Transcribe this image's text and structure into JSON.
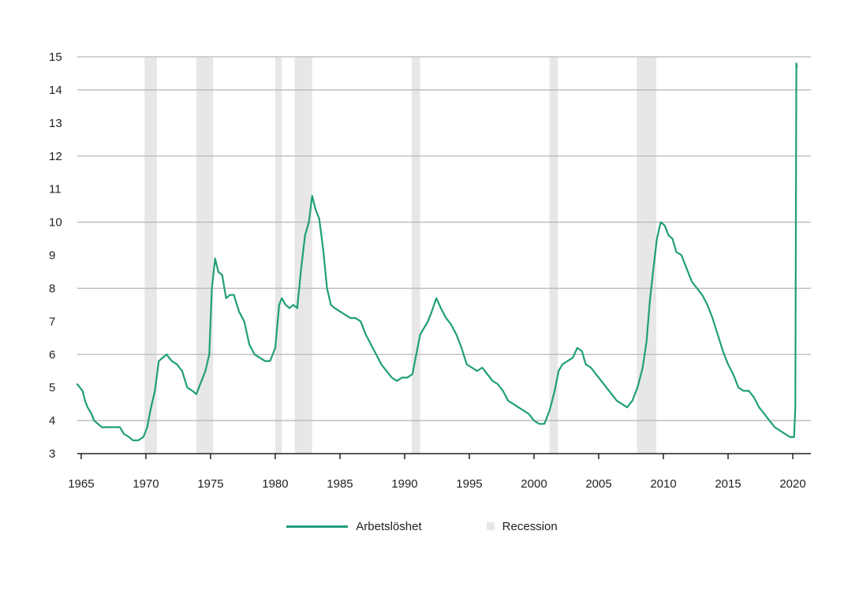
{
  "chart_data": {
    "type": "line",
    "title": "",
    "xlabel": "",
    "ylabel": "",
    "xlim": [
      1964.7,
      2021.4
    ],
    "ylim": [
      3,
      15
    ],
    "grid": true,
    "y_ticks": [
      3,
      4,
      5,
      6,
      7,
      8,
      9,
      10,
      11,
      12,
      13,
      14,
      15
    ],
    "y_tick_labels": [
      "3",
      "4",
      "5",
      "6",
      "7",
      "8",
      "9",
      "10",
      "11",
      "12",
      "13",
      "14",
      "15"
    ],
    "x_ticks": [
      1965,
      1970,
      1975,
      1980,
      1985,
      1990,
      1995,
      2000,
      2005,
      2010,
      2015,
      2020
    ],
    "x_tick_labels": [
      "1965",
      "1970",
      "1975",
      "1980",
      "1985",
      "1990",
      "1995",
      "2000",
      "2005",
      "2010",
      "2015",
      "2020"
    ],
    "legend_position": "bottom-center",
    "legend": [
      {
        "label": "Arbetslöshet",
        "kind": "line",
        "color": "#1f9e7a"
      },
      {
        "label": "Recession",
        "kind": "box",
        "color": "#e7e7e7"
      }
    ],
    "recessions": [
      [
        1969.9,
        1970.85
      ],
      [
        1973.9,
        1975.2
      ],
      [
        1980.0,
        1980.5
      ],
      [
        1981.5,
        1982.85
      ],
      [
        1990.55,
        1991.2
      ],
      [
        2001.2,
        2001.85
      ],
      [
        2007.95,
        2009.45
      ]
    ],
    "series": [
      {
        "name": "Arbetslöshet",
        "color": "#1f9e7a",
        "points": [
          [
            1964.7,
            5.1
          ],
          [
            1964.9,
            5.0
          ],
          [
            1965.1,
            4.9
          ],
          [
            1965.3,
            4.6
          ],
          [
            1965.5,
            4.4
          ],
          [
            1965.8,
            4.2
          ],
          [
            1966.0,
            4.0
          ],
          [
            1966.3,
            3.9
          ],
          [
            1966.6,
            3.8
          ],
          [
            1966.9,
            3.8
          ],
          [
            1967.2,
            3.8
          ],
          [
            1967.6,
            3.8
          ],
          [
            1968.0,
            3.8
          ],
          [
            1968.3,
            3.6
          ],
          [
            1968.7,
            3.5
          ],
          [
            1969.0,
            3.4
          ],
          [
            1969.4,
            3.4
          ],
          [
            1969.8,
            3.5
          ],
          [
            1970.1,
            3.8
          ],
          [
            1970.4,
            4.4
          ],
          [
            1970.7,
            4.9
          ],
          [
            1971.0,
            5.8
          ],
          [
            1971.3,
            5.9
          ],
          [
            1971.6,
            6.0
          ],
          [
            1972.0,
            5.8
          ],
          [
            1972.4,
            5.7
          ],
          [
            1972.8,
            5.5
          ],
          [
            1973.2,
            5.0
          ],
          [
            1973.6,
            4.9
          ],
          [
            1973.9,
            4.8
          ],
          [
            1974.2,
            5.1
          ],
          [
            1974.6,
            5.5
          ],
          [
            1974.9,
            6.0
          ],
          [
            1975.1,
            8.0
          ],
          [
            1975.35,
            8.9
          ],
          [
            1975.6,
            8.5
          ],
          [
            1975.9,
            8.4
          ],
          [
            1976.2,
            7.7
          ],
          [
            1976.5,
            7.8
          ],
          [
            1976.8,
            7.8
          ],
          [
            1977.2,
            7.3
          ],
          [
            1977.6,
            7.0
          ],
          [
            1978.0,
            6.3
          ],
          [
            1978.4,
            6.0
          ],
          [
            1978.8,
            5.9
          ],
          [
            1979.2,
            5.8
          ],
          [
            1979.6,
            5.8
          ],
          [
            1980.0,
            6.2
          ],
          [
            1980.3,
            7.5
          ],
          [
            1980.5,
            7.7
          ],
          [
            1980.8,
            7.5
          ],
          [
            1981.1,
            7.4
          ],
          [
            1981.4,
            7.5
          ],
          [
            1981.7,
            7.4
          ],
          [
            1982.0,
            8.6
          ],
          [
            1982.3,
            9.6
          ],
          [
            1982.6,
            10.0
          ],
          [
            1982.85,
            10.8
          ],
          [
            1983.1,
            10.4
          ],
          [
            1983.4,
            10.1
          ],
          [
            1983.7,
            9.2
          ],
          [
            1984.0,
            8.0
          ],
          [
            1984.3,
            7.5
          ],
          [
            1984.6,
            7.4
          ],
          [
            1985.0,
            7.3
          ],
          [
            1985.4,
            7.2
          ],
          [
            1985.8,
            7.1
          ],
          [
            1986.2,
            7.1
          ],
          [
            1986.6,
            7.0
          ],
          [
            1987.0,
            6.6
          ],
          [
            1987.4,
            6.3
          ],
          [
            1987.8,
            6.0
          ],
          [
            1988.2,
            5.7
          ],
          [
            1988.6,
            5.5
          ],
          [
            1989.0,
            5.3
          ],
          [
            1989.4,
            5.2
          ],
          [
            1989.8,
            5.3
          ],
          [
            1990.2,
            5.3
          ],
          [
            1990.6,
            5.4
          ],
          [
            1990.9,
            6.0
          ],
          [
            1991.2,
            6.6
          ],
          [
            1991.5,
            6.8
          ],
          [
            1991.8,
            7.0
          ],
          [
            1992.1,
            7.3
          ],
          [
            1992.45,
            7.7
          ],
          [
            1992.8,
            7.4
          ],
          [
            1993.2,
            7.1
          ],
          [
            1993.6,
            6.9
          ],
          [
            1994.0,
            6.6
          ],
          [
            1994.4,
            6.2
          ],
          [
            1994.8,
            5.7
          ],
          [
            1995.2,
            5.6
          ],
          [
            1995.6,
            5.5
          ],
          [
            1996.0,
            5.6
          ],
          [
            1996.4,
            5.4
          ],
          [
            1996.8,
            5.2
          ],
          [
            1997.2,
            5.1
          ],
          [
            1997.6,
            4.9
          ],
          [
            1998.0,
            4.6
          ],
          [
            1998.4,
            4.5
          ],
          [
            1998.8,
            4.4
          ],
          [
            1999.2,
            4.3
          ],
          [
            1999.6,
            4.2
          ],
          [
            2000.0,
            4.0
          ],
          [
            2000.4,
            3.9
          ],
          [
            2000.8,
            3.9
          ],
          [
            2001.2,
            4.3
          ],
          [
            2001.6,
            4.9
          ],
          [
            2001.9,
            5.5
          ],
          [
            2002.2,
            5.7
          ],
          [
            2002.6,
            5.8
          ],
          [
            2003.0,
            5.9
          ],
          [
            2003.35,
            6.2
          ],
          [
            2003.7,
            6.1
          ],
          [
            2004.0,
            5.7
          ],
          [
            2004.4,
            5.6
          ],
          [
            2004.8,
            5.4
          ],
          [
            2005.2,
            5.2
          ],
          [
            2005.6,
            5.0
          ],
          [
            2006.0,
            4.8
          ],
          [
            2006.4,
            4.6
          ],
          [
            2006.8,
            4.5
          ],
          [
            2007.2,
            4.4
          ],
          [
            2007.6,
            4.6
          ],
          [
            2008.0,
            5.0
          ],
          [
            2008.4,
            5.6
          ],
          [
            2008.7,
            6.4
          ],
          [
            2008.95,
            7.6
          ],
          [
            2009.2,
            8.5
          ],
          [
            2009.5,
            9.5
          ],
          [
            2009.8,
            10.0
          ],
          [
            2010.1,
            9.9
          ],
          [
            2010.4,
            9.6
          ],
          [
            2010.7,
            9.5
          ],
          [
            2011.0,
            9.1
          ],
          [
            2011.4,
            9.0
          ],
          [
            2011.8,
            8.6
          ],
          [
            2012.2,
            8.2
          ],
          [
            2012.6,
            8.0
          ],
          [
            2013.0,
            7.8
          ],
          [
            2013.4,
            7.5
          ],
          [
            2013.8,
            7.1
          ],
          [
            2014.2,
            6.6
          ],
          [
            2014.6,
            6.1
          ],
          [
            2015.0,
            5.7
          ],
          [
            2015.4,
            5.4
          ],
          [
            2015.8,
            5.0
          ],
          [
            2016.2,
            4.9
          ],
          [
            2016.6,
            4.9
          ],
          [
            2017.0,
            4.7
          ],
          [
            2017.4,
            4.4
          ],
          [
            2017.8,
            4.2
          ],
          [
            2018.2,
            4.0
          ],
          [
            2018.6,
            3.8
          ],
          [
            2019.0,
            3.7
          ],
          [
            2019.4,
            3.6
          ],
          [
            2019.8,
            3.5
          ],
          [
            2020.1,
            3.5
          ],
          [
            2020.2,
            4.4
          ],
          [
            2020.28,
            14.8
          ],
          [
            2020.32,
            14.7
          ]
        ]
      }
    ]
  }
}
